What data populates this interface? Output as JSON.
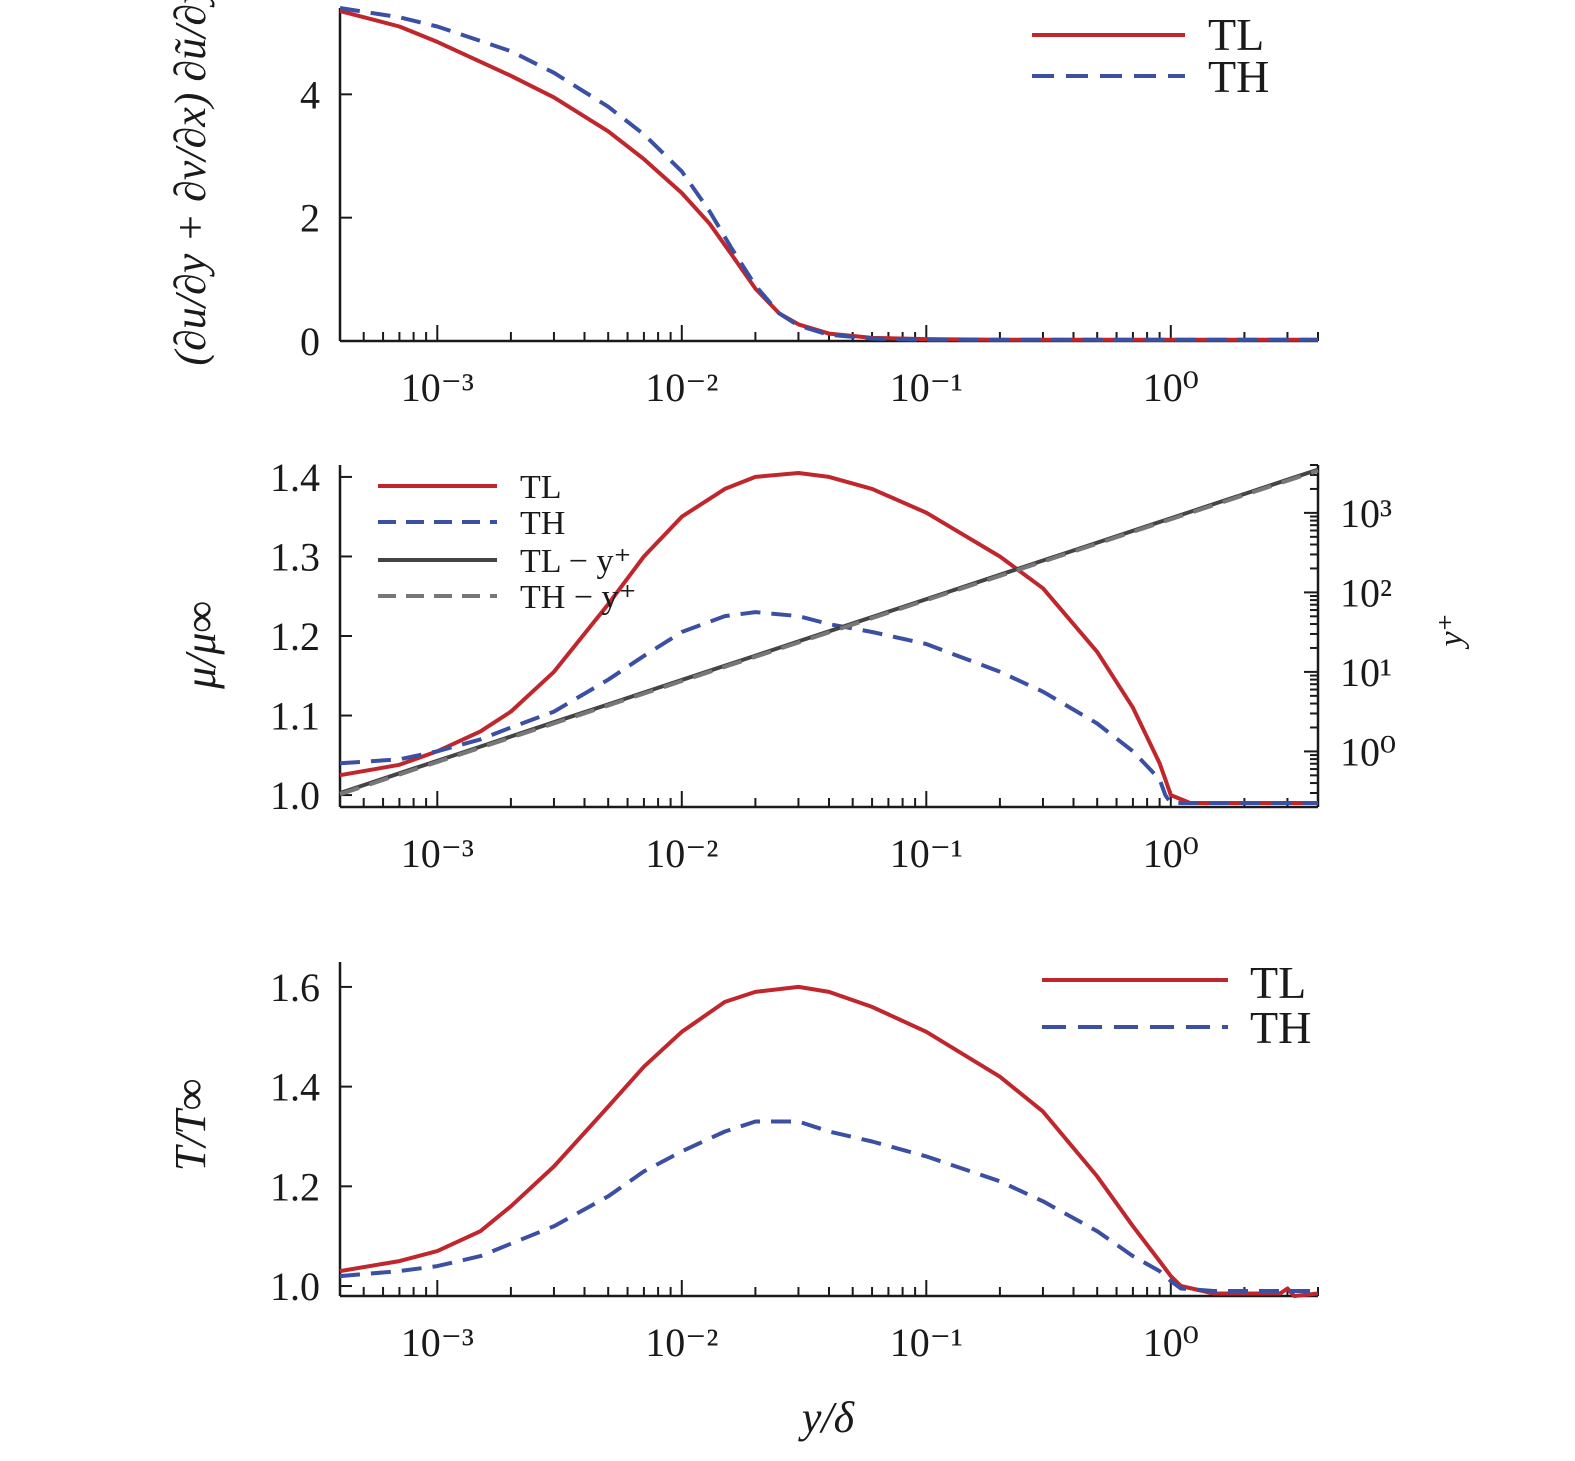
{
  "chart_data": [
    {
      "type": "line",
      "ylabel": "(∂u/∂y + ∂v/∂x) ∂ũ/∂y",
      "xscale": "log",
      "xlim": [
        0.0004,
        4
      ],
      "ylim": [
        0,
        5.4
      ],
      "x_ticks": [
        {
          "value": 0.001,
          "label": "10⁻³"
        },
        {
          "value": 0.01,
          "label": "10⁻²"
        },
        {
          "value": 0.1,
          "label": "10⁻¹"
        },
        {
          "value": 1,
          "label": "10⁰"
        }
      ],
      "y_ticks": [
        {
          "value": 0,
          "label": "0"
        },
        {
          "value": 2,
          "label": "2"
        },
        {
          "value": 4,
          "label": "4"
        }
      ],
      "legend": "top-right",
      "grid": false,
      "series": [
        {
          "name": "TL",
          "color": "#c0272d",
          "style": "solid",
          "x": [
            0.0004,
            0.0007,
            0.001,
            0.002,
            0.003,
            0.005,
            0.007,
            0.01,
            0.013,
            0.016,
            0.02,
            0.025,
            0.03,
            0.04,
            0.06,
            0.1,
            0.2,
            0.5,
            1,
            2,
            4
          ],
          "y": [
            5.35,
            5.1,
            4.85,
            4.3,
            3.95,
            3.4,
            2.95,
            2.4,
            1.9,
            1.4,
            0.85,
            0.45,
            0.27,
            0.12,
            0.05,
            0.03,
            0.02,
            0.02,
            0.02,
            0.02,
            0.02
          ]
        },
        {
          "name": "TH",
          "color": "#3b4fa3",
          "style": "dashed",
          "x": [
            0.0004,
            0.0007,
            0.001,
            0.002,
            0.003,
            0.005,
            0.007,
            0.01,
            0.013,
            0.016,
            0.02,
            0.025,
            0.03,
            0.04,
            0.06,
            0.1,
            0.2,
            0.5,
            1,
            2,
            4
          ],
          "y": [
            5.4,
            5.25,
            5.1,
            4.7,
            4.35,
            3.8,
            3.35,
            2.75,
            2.1,
            1.5,
            0.9,
            0.45,
            0.25,
            0.1,
            0.04,
            0.02,
            0.02,
            0.02,
            0.02,
            0.02,
            0.02
          ]
        }
      ]
    },
    {
      "type": "line",
      "ylabel": "μ/μ∞",
      "y2label": "y⁺",
      "xscale": "log",
      "xlim": [
        0.0004,
        4
      ],
      "ylim": [
        0.985,
        1.415
      ],
      "y2scale": "log",
      "y2lim": [
        0.2,
        4000
      ],
      "x_ticks": [
        {
          "value": 0.001,
          "label": "10⁻³"
        },
        {
          "value": 0.01,
          "label": "10⁻²"
        },
        {
          "value": 0.1,
          "label": "10⁻¹"
        },
        {
          "value": 1,
          "label": "10⁰"
        }
      ],
      "y_ticks": [
        {
          "value": 1.0,
          "label": "1.0"
        },
        {
          "value": 1.1,
          "label": "1.1"
        },
        {
          "value": 1.2,
          "label": "1.2"
        },
        {
          "value": 1.3,
          "label": "1.3"
        },
        {
          "value": 1.4,
          "label": "1.4"
        }
      ],
      "y2_ticks": [
        {
          "value": 1,
          "label": "10⁰"
        },
        {
          "value": 10,
          "label": "10¹"
        },
        {
          "value": 100,
          "label": "10²"
        },
        {
          "value": 1000,
          "label": "10³"
        }
      ],
      "legend": "top-left",
      "grid": false,
      "series": [
        {
          "name": "TL",
          "color": "#c0272d",
          "style": "solid",
          "axis": "left",
          "x": [
            0.0004,
            0.0007,
            0.001,
            0.0015,
            0.002,
            0.003,
            0.005,
            0.007,
            0.01,
            0.015,
            0.02,
            0.03,
            0.04,
            0.06,
            0.1,
            0.2,
            0.3,
            0.5,
            0.7,
            0.9,
            0.95,
            1.0,
            1.2,
            2,
            4
          ],
          "y": [
            1.025,
            1.038,
            1.055,
            1.08,
            1.105,
            1.155,
            1.24,
            1.3,
            1.35,
            1.385,
            1.4,
            1.405,
            1.4,
            1.385,
            1.355,
            1.3,
            1.26,
            1.18,
            1.11,
            1.04,
            1.02,
            1.0,
            0.99,
            0.99,
            0.99
          ]
        },
        {
          "name": "TH",
          "color": "#3b4fa3",
          "style": "dashed",
          "axis": "left",
          "x": [
            0.0004,
            0.0007,
            0.001,
            0.0015,
            0.002,
            0.003,
            0.005,
            0.007,
            0.01,
            0.015,
            0.02,
            0.03,
            0.04,
            0.06,
            0.1,
            0.2,
            0.3,
            0.5,
            0.7,
            0.9,
            0.95,
            1.0,
            1.2,
            2,
            4
          ],
          "y": [
            1.04,
            1.045,
            1.055,
            1.07,
            1.085,
            1.105,
            1.145,
            1.175,
            1.205,
            1.225,
            1.23,
            1.225,
            1.215,
            1.205,
            1.19,
            1.155,
            1.13,
            1.09,
            1.055,
            1.02,
            1.0,
            0.99,
            0.99,
            0.99,
            0.99
          ]
        },
        {
          "name": "TL − y⁺",
          "color": "#444444",
          "style": "solid",
          "axis": "right",
          "x": [
            0.0004,
            4
          ],
          "y": [
            0.3,
            3500
          ]
        },
        {
          "name": "TH − y⁺",
          "color": "#777777",
          "style": "dashed",
          "axis": "right",
          "x": [
            0.0004,
            4
          ],
          "y": [
            0.29,
            3400
          ]
        }
      ]
    },
    {
      "type": "line",
      "ylabel": "T/T∞",
      "xlabel": "y/δ",
      "xscale": "log",
      "xlim": [
        0.0004,
        4
      ],
      "ylim": [
        0.98,
        1.65
      ],
      "x_ticks": [
        {
          "value": 0.001,
          "label": "10⁻³"
        },
        {
          "value": 0.01,
          "label": "10⁻²"
        },
        {
          "value": 0.1,
          "label": "10⁻¹"
        },
        {
          "value": 1,
          "label": "10⁰"
        }
      ],
      "y_ticks": [
        {
          "value": 1.0,
          "label": "1.0"
        },
        {
          "value": 1.2,
          "label": "1.2"
        },
        {
          "value": 1.4,
          "label": "1.4"
        },
        {
          "value": 1.6,
          "label": "1.6"
        }
      ],
      "legend": "top-right",
      "grid": false,
      "series": [
        {
          "name": "TL",
          "color": "#c0272d",
          "style": "solid",
          "x": [
            0.0004,
            0.0007,
            0.001,
            0.0015,
            0.002,
            0.003,
            0.005,
            0.007,
            0.01,
            0.015,
            0.02,
            0.03,
            0.04,
            0.06,
            0.1,
            0.2,
            0.3,
            0.5,
            0.7,
            0.9,
            1.0,
            1.1,
            1.5,
            2,
            2.8,
            3,
            3.2,
            4
          ],
          "y": [
            1.03,
            1.05,
            1.07,
            1.11,
            1.16,
            1.24,
            1.36,
            1.44,
            1.51,
            1.57,
            1.59,
            1.6,
            1.59,
            1.56,
            1.51,
            1.42,
            1.35,
            1.22,
            1.12,
            1.05,
            1.02,
            1.0,
            0.985,
            0.985,
            0.985,
            0.995,
            0.98,
            0.985
          ]
        },
        {
          "name": "TH",
          "color": "#3b4fa3",
          "style": "dashed",
          "x": [
            0.0004,
            0.0007,
            0.001,
            0.0015,
            0.002,
            0.003,
            0.005,
            0.007,
            0.01,
            0.015,
            0.02,
            0.03,
            0.04,
            0.06,
            0.1,
            0.2,
            0.3,
            0.5,
            0.7,
            0.9,
            1.0,
            1.1,
            1.5,
            2,
            4
          ],
          "y": [
            1.02,
            1.03,
            1.04,
            1.06,
            1.085,
            1.12,
            1.18,
            1.23,
            1.27,
            1.31,
            1.33,
            1.33,
            1.31,
            1.29,
            1.26,
            1.21,
            1.17,
            1.11,
            1.06,
            1.03,
            1.01,
            0.995,
            0.99,
            0.99,
            0.99
          ]
        }
      ]
    }
  ]
}
